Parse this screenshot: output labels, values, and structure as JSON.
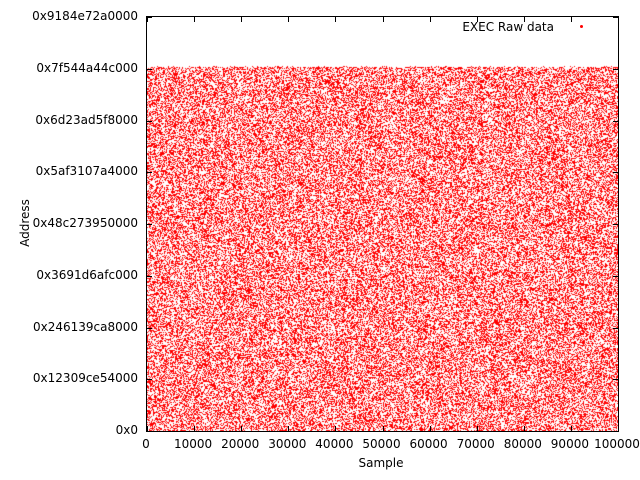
{
  "figure": {
    "background": "#ffffff",
    "border_color": "#000000"
  },
  "chart_data": {
    "type": "scatter",
    "title": "",
    "xlabel": "Sample",
    "ylabel": "Address",
    "xlim": [
      0,
      100000
    ],
    "ylim_hex": [
      "0x0",
      "0x9184e72a0000"
    ],
    "x_ticks": [
      "0",
      "10000",
      "20000",
      "30000",
      "40000",
      "50000",
      "60000",
      "70000",
      "80000",
      "90000",
      "100000"
    ],
    "y_ticks": [
      "0x0",
      "0x12309ce54000",
      "0x246139ca8000",
      "0x3691d6afc000",
      "0x48c273950000",
      "0x5af3107a4000",
      "0x6d23ad5f8000",
      "0x7f544a44c000",
      "0x9184e72a0000"
    ],
    "grid": false,
    "legend": {
      "label": "EXEC Raw data",
      "position": "top-right-inside",
      "marker": "point",
      "marker_color": "#ff0000"
    },
    "series": [
      {
        "name": "EXEC Raw data",
        "color": "#ff0000",
        "marker": "dot-1px",
        "x_min": 0,
        "x_max": 100000,
        "y_min_hex": "0x0",
        "y_max_hex": "0x7fffffffffff",
        "points_approx": 100000,
        "distribution": "dense uniform random fill of addresses between 0x0 and ~0x7fffffffffff across all samples (~45% pixel coverage); empty band above 0x7fffffffffff up to axis top 0x9184e72a0000"
      }
    ]
  }
}
